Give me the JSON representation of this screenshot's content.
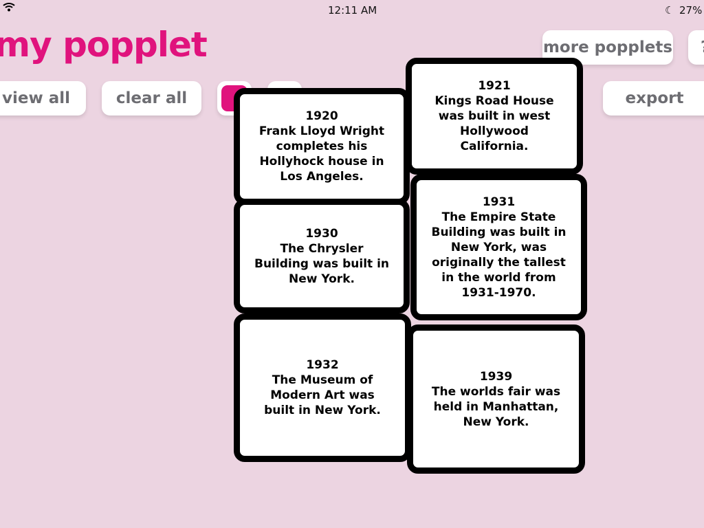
{
  "status_bar": {
    "time": "12:11 AM",
    "battery": "27%",
    "wifi_icon": "wifi-icon",
    "moon_icon": "moon-icon"
  },
  "header": {
    "title": "my popplet"
  },
  "toolbar": {
    "view_all": "view all",
    "clear_all": "clear all",
    "color_swatch": "#e0137d",
    "settings_icon": "gear-icon",
    "more_popplets": "more popplets",
    "help": "?",
    "export": "export"
  },
  "popples": [
    {
      "text": "1920\nFrank Lloyd Wright\ncompletes his\nHollyhock house in\nLos Angeles."
    },
    {
      "text": "1921\nKings Road House\nwas built in west\nHollywood\nCalifornia."
    },
    {
      "text": "1930\nThe Chrysler\nBuilding was built in\nNew York."
    },
    {
      "text": "1931\nThe Empire State\nBuilding was built in\nNew York, was\noriginally the tallest\nin the world from\n1931-1970."
    },
    {
      "text": "1932\nThe Museum of\nModern Art was\nbuilt  in New York."
    },
    {
      "text": "1939\nThe worlds fair was\nheld in Manhattan,\nNew York."
    }
  ]
}
